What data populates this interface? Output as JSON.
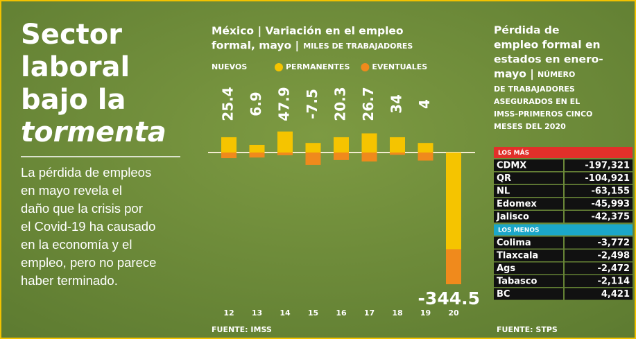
{
  "headline": {
    "lines": [
      "Sector",
      "laboral",
      "bajo la"
    ],
    "emphasis": "tormenta"
  },
  "body_lines": [
    "La pérdida de empleos",
    "en mayo revela el",
    "daño que la crisis por",
    "el Covid-19 ha causado",
    "en la economía y el",
    "empleo, pero no parece",
    "haber terminado."
  ],
  "chart_data": {
    "type": "bar",
    "stacked": true,
    "title_lines": [
      "México | Variación en el empleo",
      "formal, mayo |"
    ],
    "unit": "MILES DE TRABAJADORES",
    "legend_title": "NUEVOS",
    "categories": [
      "12",
      "13",
      "14",
      "15",
      "16",
      "17",
      "18",
      "19",
      "20"
    ],
    "series": [
      {
        "name": "PERMANENTES",
        "color": "#f5c400",
        "values": [
          40,
          20,
          55,
          25,
          40,
          50,
          40,
          25,
          -253
        ]
      },
      {
        "name": "EVENTUALES",
        "color": "#f08a1c",
        "values": [
          -14.6,
          -13.1,
          -7.1,
          -32.5,
          -19.7,
          -23.3,
          -6,
          -21,
          -91.5
        ]
      }
    ],
    "totals": [
      25.4,
      6.9,
      47.9,
      -7.5,
      20.3,
      26.7,
      34.0,
      4.0,
      -344.5
    ],
    "source": "FUENTE: IMSS"
  },
  "table": {
    "title_lines": [
      "Pérdida de",
      "empleo formal en",
      "estados en enero-",
      "mayo |"
    ],
    "subtitle_lines": [
      "NÚMERO",
      "DE TRABAJADORES",
      "ASEGURADOS EN EL",
      "IMSS-PRIMEROS CINCO",
      "MESES DEL 2020"
    ],
    "groups": [
      {
        "label": "LOS MÁS",
        "color": "#e2302a",
        "rows": [
          [
            "CDMX",
            "-197,321"
          ],
          [
            "QR",
            "-104,921"
          ],
          [
            "NL",
            "-63,155"
          ],
          [
            "Edomex",
            "-45,993"
          ],
          [
            "Jalisco",
            "-42,375"
          ]
        ]
      },
      {
        "label": "LOS MENOS",
        "color": "#1ba7c9",
        "rows": [
          [
            "Colima",
            "-3,772"
          ],
          [
            "Tlaxcala",
            "-2,498"
          ],
          [
            "Ags",
            "-2,472"
          ],
          [
            "Tabasco",
            "-2,114"
          ],
          [
            "BC",
            "4,421"
          ]
        ]
      }
    ],
    "source": "FUENTE: STPS"
  }
}
